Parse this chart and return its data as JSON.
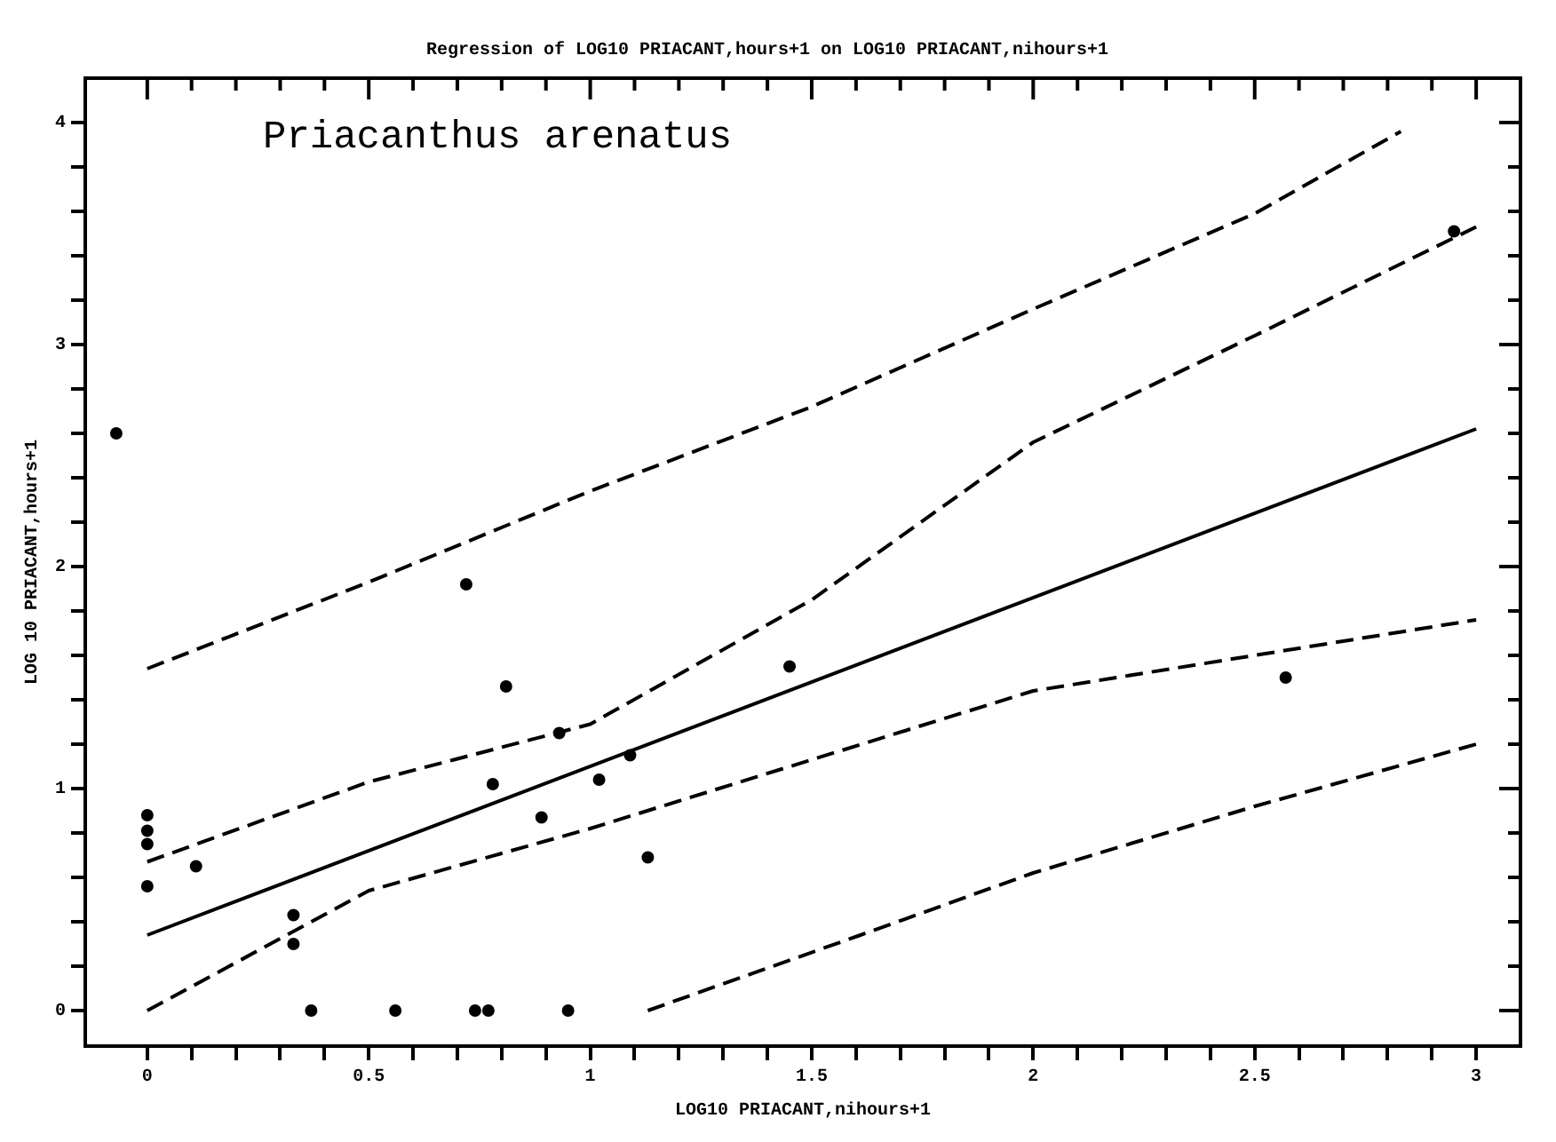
{
  "chart_data": {
    "type": "scatter",
    "title": "Regression of LOG10 PRIACANT,hours+1 on LOG10 PRIACANT,nihours+1",
    "xlabel": "LOG10 PRIACANT,nihours+1",
    "ylabel": "LOG 10 PRIACANT,hours+1",
    "annotations": [
      "Priacanthus arenatus"
    ],
    "xlim": [
      -0.14,
      3.1
    ],
    "ylim": [
      -0.16,
      4.2
    ],
    "xticks": [
      0,
      {
        "value": 0.1,
        "label": null
      },
      {
        "value": 0.2,
        "label": null
      },
      {
        "value": 0.3,
        "label": null
      },
      {
        "value": 0.4,
        "label": null
      },
      0.5,
      {
        "value": 0.6,
        "label": null
      },
      {
        "value": 0.7,
        "label": null
      },
      {
        "value": 0.8,
        "label": null
      },
      {
        "value": 0.9,
        "label": null
      },
      1,
      {
        "value": 1.1,
        "label": null
      },
      {
        "value": 1.2,
        "label": null
      },
      {
        "value": 1.3,
        "label": null
      },
      {
        "value": 1.4,
        "label": null
      },
      1.5,
      {
        "value": 1.6,
        "label": null
      },
      {
        "value": 1.7,
        "label": null
      },
      {
        "value": 1.8,
        "label": null
      },
      {
        "value": 1.9,
        "label": null
      },
      2,
      {
        "value": 2.1,
        "label": null
      },
      {
        "value": 2.2,
        "label": null
      },
      {
        "value": 2.3,
        "label": null
      },
      {
        "value": 2.4,
        "label": null
      },
      2.5,
      {
        "value": 2.6,
        "label": null
      },
      {
        "value": 2.7,
        "label": null
      },
      {
        "value": 2.8,
        "label": null
      },
      {
        "value": 2.9,
        "label": null
      },
      3
    ],
    "yticks": [
      0,
      {
        "value": 0.2,
        "label": null
      },
      {
        "value": 0.4,
        "label": null
      },
      {
        "value": 0.6,
        "label": null
      },
      {
        "value": 0.8,
        "label": null
      },
      1,
      {
        "value": 1.2,
        "label": null
      },
      {
        "value": 1.4,
        "label": null
      },
      {
        "value": 1.6,
        "label": null
      },
      {
        "value": 1.8,
        "label": null
      },
      2,
      {
        "value": 2.2,
        "label": null
      },
      {
        "value": 2.4,
        "label": null
      },
      {
        "value": 2.6,
        "label": null
      },
      {
        "value": 2.8,
        "label": null
      },
      3,
      {
        "value": 3.2,
        "label": null
      },
      {
        "value": 3.4,
        "label": null
      },
      {
        "value": 3.6,
        "label": null
      },
      {
        "value": 3.8,
        "label": null
      },
      4
    ],
    "grid": false,
    "legend": false,
    "series": [
      {
        "type": "scatter",
        "color": "#000000",
        "marker": "circle",
        "x": [
          -0.07,
          0,
          0,
          0,
          0,
          0.11,
          0.33,
          0.33,
          0.37,
          0.56,
          0.74,
          0.77,
          0.95,
          0.72,
          0.81,
          0.78,
          0.93,
          0.89,
          1.02,
          1.09,
          1.13,
          1.45,
          2.57,
          2.95
        ],
        "values": [
          2.6,
          0.88,
          0.81,
          0.75,
          0.56,
          0.65,
          0.43,
          0.3,
          0,
          0,
          0,
          0,
          0,
          1.92,
          1.46,
          1.02,
          1.25,
          0.87,
          1.04,
          1.15,
          0.69,
          1.55,
          1.5,
          3.51
        ]
      },
      {
        "type": "line",
        "color": "#000000",
        "marker": "none",
        "line_style": "solid",
        "x": [
          0,
          3
        ],
        "values": [
          0.34,
          2.62
        ]
      },
      {
        "type": "line",
        "color": "#000000",
        "marker": "none",
        "line_style": "dashed",
        "x": [
          0,
          0.5,
          1,
          1.5,
          2,
          2.5,
          2.83
        ],
        "values": [
          1.54,
          1.93,
          2.34,
          2.72,
          3.16,
          3.59,
          3.96
        ]
      },
      {
        "type": "line",
        "color": "#000000",
        "marker": "none",
        "line_style": "dashed",
        "x": [
          0,
          0.5,
          1,
          1.5,
          2,
          2.5,
          3
        ],
        "values": [
          0.67,
          1.03,
          1.29,
          1.85,
          2.56,
          3.04,
          3.53
        ]
      },
      {
        "type": "line",
        "color": "#000000",
        "marker": "none",
        "line_style": "dashed",
        "x": [
          0,
          0.5,
          1,
          1.5,
          2,
          2.5,
          3
        ],
        "values": [
          0,
          0.54,
          0.82,
          1.13,
          1.44,
          1.6,
          1.76
        ]
      },
      {
        "type": "line",
        "color": "#000000",
        "marker": "none",
        "line_style": "dashed",
        "x": [
          1.13,
          1.61,
          2,
          2.5,
          3
        ],
        "values": [
          0,
          0.34,
          0.62,
          0.92,
          1.2
        ]
      }
    ]
  }
}
